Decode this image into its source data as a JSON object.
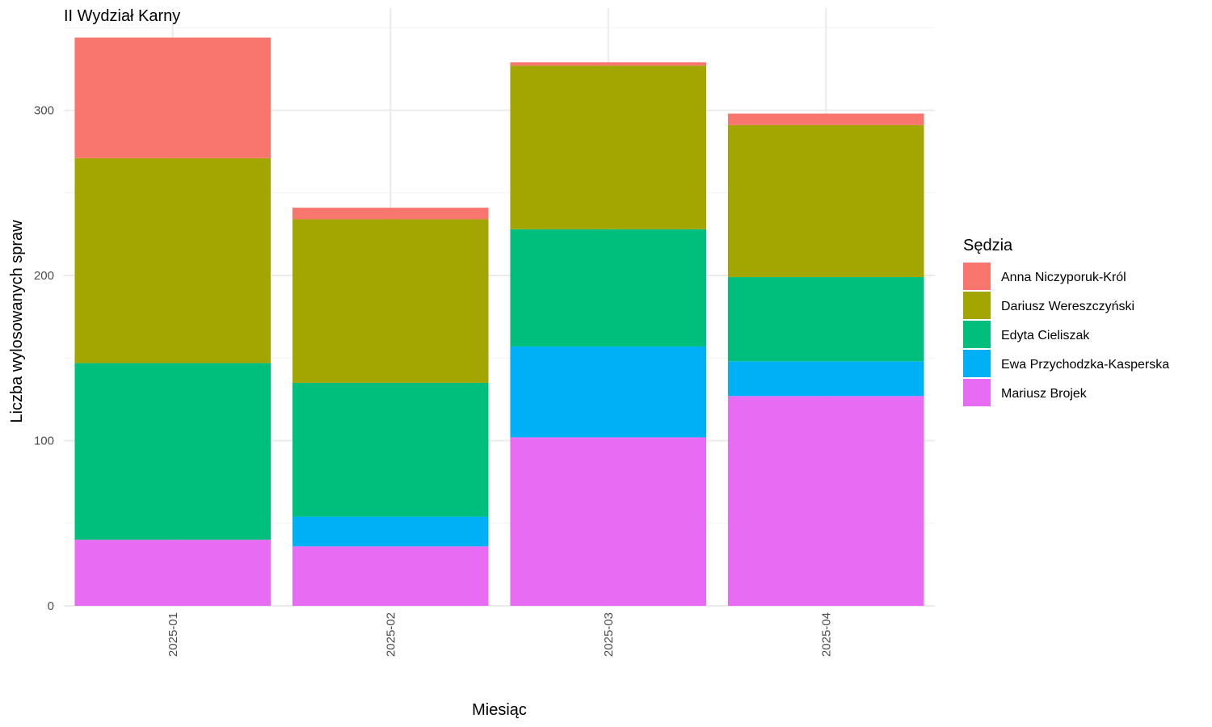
{
  "chart_data": {
    "type": "bar",
    "stacked": true,
    "title": "II Wydział Karny",
    "xlabel": "Miesiąc",
    "ylabel": "Liczba wylosowanych spraw",
    "categories": [
      "2025-01",
      "2025-02",
      "2025-03",
      "2025-04"
    ],
    "ylim": [
      0,
      350
    ],
    "yticks": [
      0,
      100,
      200,
      300
    ],
    "grid": true,
    "legend_title": "Sędzia",
    "legend_position": "right",
    "series": [
      {
        "name": "Anna Niczyporuk-Król",
        "color": "#F8766D",
        "values": [
          73,
          7,
          2,
          7
        ]
      },
      {
        "name": "Dariusz Wereszczyński",
        "color": "#A3A500",
        "values": [
          124,
          99,
          99,
          92
        ]
      },
      {
        "name": "Edyta Cieliszak",
        "color": "#00BF7D",
        "values": [
          107,
          81,
          71,
          51
        ]
      },
      {
        "name": "Ewa Przychodzka-Kasperska",
        "color": "#00B0F6",
        "values": [
          0,
          18,
          55,
          21
        ]
      },
      {
        "name": "Mariusz Brojek",
        "color": "#E76BF3",
        "values": [
          40,
          36,
          102,
          127
        ]
      }
    ]
  }
}
